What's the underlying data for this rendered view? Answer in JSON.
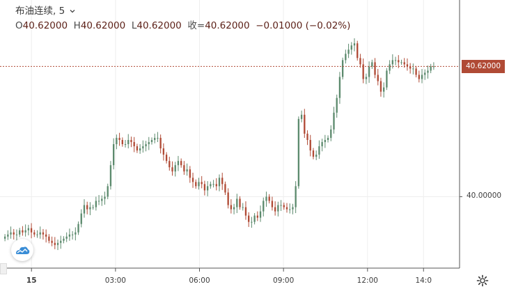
{
  "legend": {
    "symbol": "布油连续",
    "interval": "5",
    "open_label": "O",
    "open": "40.62000",
    "high_label": "H",
    "high": "40.62000",
    "low_label": "L",
    "low": "40.62000",
    "close_label": "收=",
    "close": "40.62000",
    "change": "−0.01000",
    "change_pct": "(−0.02%)"
  },
  "price_tag": "40.62000",
  "icons": {
    "logo": "tradingview-cloud-logo-icon",
    "settings": "gear-icon",
    "dropdown": "chevron-down-icon"
  },
  "colors": {
    "up": "#5c8a6d",
    "down": "#b04a35",
    "tag": "#b04a35",
    "grid": "#eeeeee",
    "axis": "#555555"
  },
  "chart_data": {
    "type": "candlestick",
    "interval_minutes": 5,
    "y_axis": {
      "ticks": [
        {
          "value": 40.0,
          "label": "40.00000"
        }
      ],
      "range": [
        39.66,
        40.87
      ]
    },
    "current_price": 40.62,
    "x_axis": {
      "ticks": [
        {
          "label": "15",
          "time": "00:00",
          "bold": true
        },
        {
          "label": "03:00",
          "time": "03:00"
        },
        {
          "label": "06:00",
          "time": "06:00"
        },
        {
          "label": "09:00",
          "time": "09:00"
        },
        {
          "label": "12:00",
          "time": "12:00"
        },
        {
          "label": "14:0",
          "time": "14:00"
        }
      ],
      "start_time": "23:00",
      "end_time": "14:25"
    },
    "grid": true,
    "close_values": [
      39.81,
      39.82,
      39.83,
      39.82,
      39.82,
      39.84,
      39.83,
      39.84,
      39.85,
      39.83,
      39.82,
      39.82,
      39.83,
      39.82,
      39.81,
      39.79,
      39.78,
      39.77,
      39.78,
      39.79,
      39.8,
      39.81,
      39.82,
      39.82,
      39.83,
      39.87,
      39.92,
      39.96,
      39.94,
      39.95,
      39.95,
      39.98,
      39.98,
      39.99,
      40.0,
      40.05,
      40.15,
      40.25,
      40.28,
      40.27,
      40.25,
      40.25,
      40.27,
      40.26,
      40.24,
      40.22,
      40.23,
      40.24,
      40.25,
      40.26,
      40.27,
      40.28,
      40.28,
      40.23,
      40.2,
      40.17,
      40.14,
      40.12,
      40.15,
      40.17,
      40.15,
      40.12,
      40.13,
      40.09,
      40.07,
      40.05,
      40.07,
      40.06,
      40.03,
      40.05,
      40.06,
      40.06,
      40.05,
      40.09,
      40.06,
      40.02,
      39.96,
      39.94,
      39.95,
      39.99,
      39.95,
      39.95,
      39.91,
      39.88,
      39.88,
      39.91,
      39.9,
      39.93,
      39.98,
      40.0,
      39.98,
      39.95,
      39.93,
      39.96,
      39.96,
      39.95,
      39.94,
      39.94,
      39.95,
      40.05,
      40.37,
      40.39,
      40.3,
      40.27,
      40.22,
      40.19,
      40.2,
      40.24,
      40.26,
      40.27,
      40.28,
      40.32,
      40.4,
      40.47,
      40.57,
      40.65,
      40.68,
      40.7,
      40.72,
      40.73,
      40.66,
      40.63,
      40.56,
      40.57,
      40.62,
      40.64,
      40.58,
      40.55,
      40.5,
      40.52,
      40.6,
      40.63,
      40.65,
      40.65,
      40.64,
      40.64,
      40.63,
      40.62,
      40.61,
      40.61,
      40.58,
      40.56,
      40.58,
      40.59,
      40.6,
      40.62,
      40.62
    ]
  }
}
